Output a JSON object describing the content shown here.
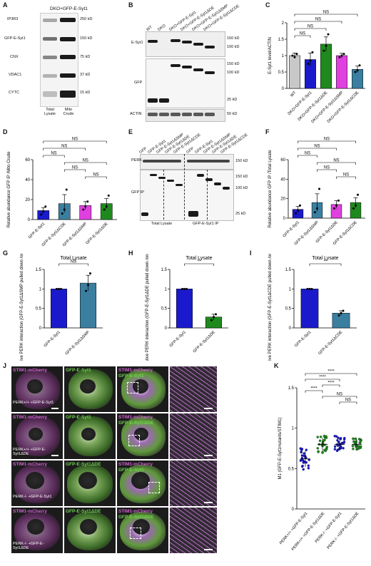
{
  "panel_labels": {
    "A": "A",
    "B": "B",
    "C": "C",
    "D": "D",
    "E": "E",
    "F": "F",
    "G": "G",
    "H": "H",
    "I": "I",
    "J": "J",
    "K": "K"
  },
  "panelA": {
    "header": "DKO+GFP-E-Syt1",
    "rows": [
      "IP3R3",
      "GFP-E-Syt1",
      "CNX",
      "VDAC1",
      "CYTC"
    ],
    "markers": [
      "250 kD",
      "150 kD",
      "75 kD",
      "37 kD",
      "15 kD"
    ],
    "lanes": [
      "Total Lysate",
      "Mito Crude"
    ]
  },
  "panelB": {
    "lanes": [
      "WT",
      "DKO",
      "DKO+GFP-E-Syt1",
      "DKO+GFP-E-Syt1ΔDE",
      "DKO+GFP-E-Syt1ΔSMP",
      "DKO+GFP-E-Syt1ΔCDE"
    ],
    "rows": [
      "E-Syt1",
      "GFP",
      "ACTIN"
    ],
    "markers_top": [
      "150 kD",
      "100 kD"
    ],
    "markers_mid": [
      "150 kD",
      "100 kD",
      "25 kD"
    ],
    "markers_bot": [
      "50 kD"
    ]
  },
  "panelE": {
    "lanes": [
      "GFP",
      "GFP-E-Syt1",
      "GFP-E-Syt1ΔSMP",
      "GFP-E-Syt1ΔDE",
      "GFP-E-Syt1ΔCDE",
      "GFP",
      "GFP-E-Syt1",
      "GFP-E-Syt1ΔSMP",
      "GFP-E-Syt1ΔDE",
      "GFP-E-Syt1ΔCDE"
    ],
    "rows": [
      "PERK",
      "GFP IP"
    ],
    "markers": [
      "150 kD",
      "150 kD",
      "100 kD",
      "25 kD"
    ],
    "group_labels": [
      "Total Lysate",
      "GFP-E-Syt1 IP"
    ]
  },
  "panelJ": {
    "row_labels": [
      "PERK+/+ +GFP-E-Syt1",
      "PERK+/+ +GFP-E-Syt1ΔDE",
      "PERK-/- +GFP-E-Syt1",
      "PERK-/- +GFP-E-Syt1ΔDE"
    ],
    "col1": "STIM1-mCherry",
    "col2": [
      "GFP-E-Syt1",
      "GFP-E-Syt1",
      "GFP-E-Syt1ΔDE",
      "GFP-E-Syt1ΔDE"
    ],
    "col3_top": "STIM1-mCherry",
    "col3_bottom": [
      "GFP-E-Syt1",
      "GFP-E-Syt1ΔDE",
      "GFP-E-Syt1",
      "GFP-E-Syt1ΔDE"
    ]
  },
  "chart_data": [
    {
      "panel": "C",
      "type": "bar",
      "ylabel": "E-Syt1 level/ACTIN",
      "ylim": [
        0,
        2.0
      ],
      "yticks": [
        0,
        0.5,
        1.0,
        1.5,
        2.0
      ],
      "categories": [
        "WT",
        "DKO+GFP-E-Syt1",
        "DKO+GFP-E-Syt1ΔDE",
        "DKO+GFP-E-Syt1ΔSMP",
        "DKO+GFP-E-Syt1ΔCDE"
      ],
      "values": [
        1.0,
        0.88,
        1.35,
        1.0,
        0.58
      ],
      "errors": [
        0.08,
        0.2,
        0.22,
        0.07,
        0.1
      ],
      "colors": [
        "#c8c8c8",
        "#1a1acc",
        "#1e8a1e",
        "#e040e0",
        "#3a7fa0"
      ],
      "points": [
        [
          1.0,
          0.95,
          1.05
        ],
        [
          0.75,
          0.85,
          1.1
        ],
        [
          1.15,
          1.3,
          1.65
        ],
        [
          0.95,
          1.0,
          1.05
        ],
        [
          0.5,
          0.55,
          0.7
        ]
      ],
      "significance": [
        "NS",
        "NS",
        "NS",
        "NS"
      ]
    },
    {
      "panel": "D",
      "type": "bar",
      "ylabel": "Relative abundance GFP IP /Mito Crude",
      "ylim": [
        0,
        60
      ],
      "yticks": [
        0,
        20,
        40,
        60
      ],
      "categories": [
        "GFP-E-Syt1",
        "GFP-E-Syt1ΔCDE",
        "GFP-E-Syt1ΔSMP",
        "GFP-E-Syt1ΔDE"
      ],
      "values": [
        9,
        16,
        14,
        16
      ],
      "errors": [
        3,
        9,
        4,
        5
      ],
      "colors": [
        "#1a1acc",
        "#3a7fa0",
        "#e040e0",
        "#1e8a1e"
      ],
      "points": [
        [
          5,
          8,
          13
        ],
        [
          6,
          10,
          30
        ],
        [
          10,
          13,
          18
        ],
        [
          10,
          13,
          24
        ]
      ],
      "significance": [
        "NS",
        "NS",
        "NS",
        "NS",
        "NS",
        "NS"
      ]
    },
    {
      "panel": "F",
      "type": "bar",
      "ylabel": "Relative abundance GFP IP /Total Lysate",
      "ylim": [
        0,
        60
      ],
      "yticks": [
        0,
        20,
        40,
        60
      ],
      "categories": [
        "GFP-E-Syt1",
        "GFP-E-Syt1ΔSMP",
        "GFP-E-Syt1ΔDE",
        "GFP-E-Syt1ΔCDE"
      ],
      "values": [
        9,
        16,
        14,
        16
      ],
      "errors": [
        3,
        9,
        4,
        5
      ],
      "colors": [
        "#1a1acc",
        "#3a7fa0",
        "#e040e0",
        "#1e8a1e"
      ],
      "points": [
        [
          5,
          8,
          13
        ],
        [
          6,
          10,
          30
        ],
        [
          10,
          13,
          18
        ],
        [
          10,
          13,
          24
        ]
      ],
      "significance": [
        "NS",
        "NS",
        "NS",
        "NS",
        "NS",
        "NS"
      ]
    },
    {
      "panel": "G",
      "type": "bar",
      "title": "Total Lysate",
      "ylabel": "Relative PERK interaction (GFP-E-Syt1ΔSMP pulled down /on GFP-E-Syt1)",
      "ylim": [
        0,
        1.5
      ],
      "yticks": [
        0,
        0.5,
        1.0,
        1.5
      ],
      "categories": [
        "GFP-E-Syt1",
        "GFP-E-Syt1ΔSMP"
      ],
      "values": [
        1.0,
        1.15
      ],
      "errors": [
        0,
        0.2
      ],
      "colors": [
        "#1a1acc",
        "#3a7fa0"
      ],
      "points": [
        [
          1.0,
          1.0,
          1.0
        ],
        [
          0.95,
          1.1,
          1.4
        ]
      ],
      "significance": [
        "NS"
      ]
    },
    {
      "panel": "H",
      "type": "bar",
      "title": "Total Lysate",
      "ylabel": "Relative PERK interaction (GFP-E-Syt1ΔDE pulled down /on GFP-E-Syt1)",
      "ylim": [
        0,
        1.5
      ],
      "yticks": [
        0,
        0.5,
        1.0,
        1.5
      ],
      "categories": [
        "GFP-E-Syt1",
        "GFP-E-Syt1ΔDE"
      ],
      "values": [
        1.0,
        0.28
      ],
      "errors": [
        0,
        0.07
      ],
      "colors": [
        "#1a1acc",
        "#1e8a1e"
      ],
      "points": [
        [
          1.0,
          1.0,
          1.0
        ],
        [
          0.2,
          0.28,
          0.35
        ]
      ],
      "significance": [
        "**"
      ]
    },
    {
      "panel": "I",
      "type": "bar",
      "title": "Total Lysate",
      "ylabel": "Relative PERK interaction (GFP-E-Syt1ΔCDE pulled down /on GFP-E-Syt1)",
      "ylim": [
        0,
        1.5
      ],
      "yticks": [
        0,
        0.5,
        1.0,
        1.5
      ],
      "categories": [
        "GFP-E-Syt1",
        "GFP-E-Syt1ΔCDE"
      ],
      "values": [
        1.0,
        0.38
      ],
      "errors": [
        0,
        0.06
      ],
      "colors": [
        "#1a1acc",
        "#3a7fa0"
      ],
      "points": [
        [
          1.0,
          1.0,
          1.0
        ],
        [
          0.32,
          0.38,
          0.44
        ]
      ],
      "significance": [
        "**"
      ]
    },
    {
      "panel": "K",
      "type": "scatter",
      "ylabel": "M1 (GFP-E-Syt1mutants/STIM1)",
      "ylim": [
        0,
        1.5
      ],
      "yticks": [
        0,
        0.5,
        1.0,
        1.5
      ],
      "categories": [
        "PERK+/+ +GFP-E-Syt1",
        "PERK+/+ +GFP-E-Syt1ΔDE",
        "PERK-/- +GFP-E-Syt1",
        "PERK-/- +GFP-E-Syt1ΔDE"
      ],
      "values": [
        0.62,
        0.8,
        0.8,
        0.8
      ],
      "errors": [
        0.1,
        0.08,
        0.08,
        0.06
      ],
      "colors": [
        "#1a1acc",
        "#1e8a1e",
        "#1a1acc",
        "#1e8a1e"
      ],
      "significance": [
        "****",
        "****",
        "****",
        "****",
        "NS",
        "NS"
      ]
    }
  ]
}
